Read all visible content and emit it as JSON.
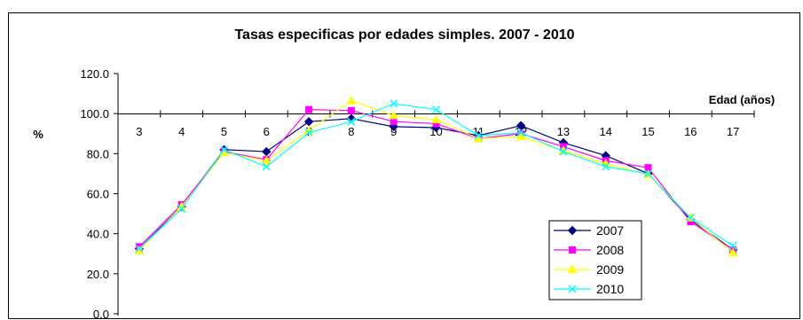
{
  "chart_data": {
    "type": "line",
    "title": "Tasas especificas por edades simples. 2007 - 2010",
    "xlabel": "Edad (años)",
    "ylabel": "%",
    "categories": [
      "3",
      "4",
      "5",
      "6",
      "7",
      "8",
      "9",
      "10",
      "11",
      "12",
      "13",
      "14",
      "15",
      "16",
      "17"
    ],
    "y_ticks": [
      "0.0",
      "20.0",
      "40.0",
      "60.0",
      "80.0",
      "100.0",
      "120.0"
    ],
    "ylim": [
      0,
      120
    ],
    "legend_position": "bottom-right",
    "series": [
      {
        "name": "2007",
        "color": "#000080",
        "marker": "diamond",
        "values": [
          32.5,
          53.5,
          82.0,
          81.0,
          96.0,
          97.5,
          93.5,
          93.0,
          89.0,
          94.0,
          85.5,
          79.0,
          70.0,
          47.0,
          32.0
        ]
      },
      {
        "name": "2008",
        "color": "#ff00ff",
        "marker": "square",
        "values": [
          33.5,
          54.5,
          81.0,
          77.0,
          102.0,
          101.5,
          96.0,
          95.0,
          87.5,
          90.0,
          83.5,
          76.5,
          73.0,
          46.0,
          32.0
        ]
      },
      {
        "name": "2009",
        "color": "#ffff00",
        "marker": "triangle",
        "values": [
          31.5,
          53.5,
          80.5,
          76.5,
          91.5,
          106.5,
          99.0,
          97.0,
          87.5,
          88.5,
          81.5,
          75.0,
          69.5,
          48.0,
          30.5
        ]
      },
      {
        "name": "2010",
        "color": "#00ffff",
        "marker": "x",
        "values": [
          32.5,
          52.5,
          82.0,
          73.5,
          90.5,
          96.0,
          105.0,
          102.0,
          89.0,
          90.5,
          81.0,
          73.5,
          70.0,
          48.0,
          34.0
        ]
      }
    ]
  }
}
